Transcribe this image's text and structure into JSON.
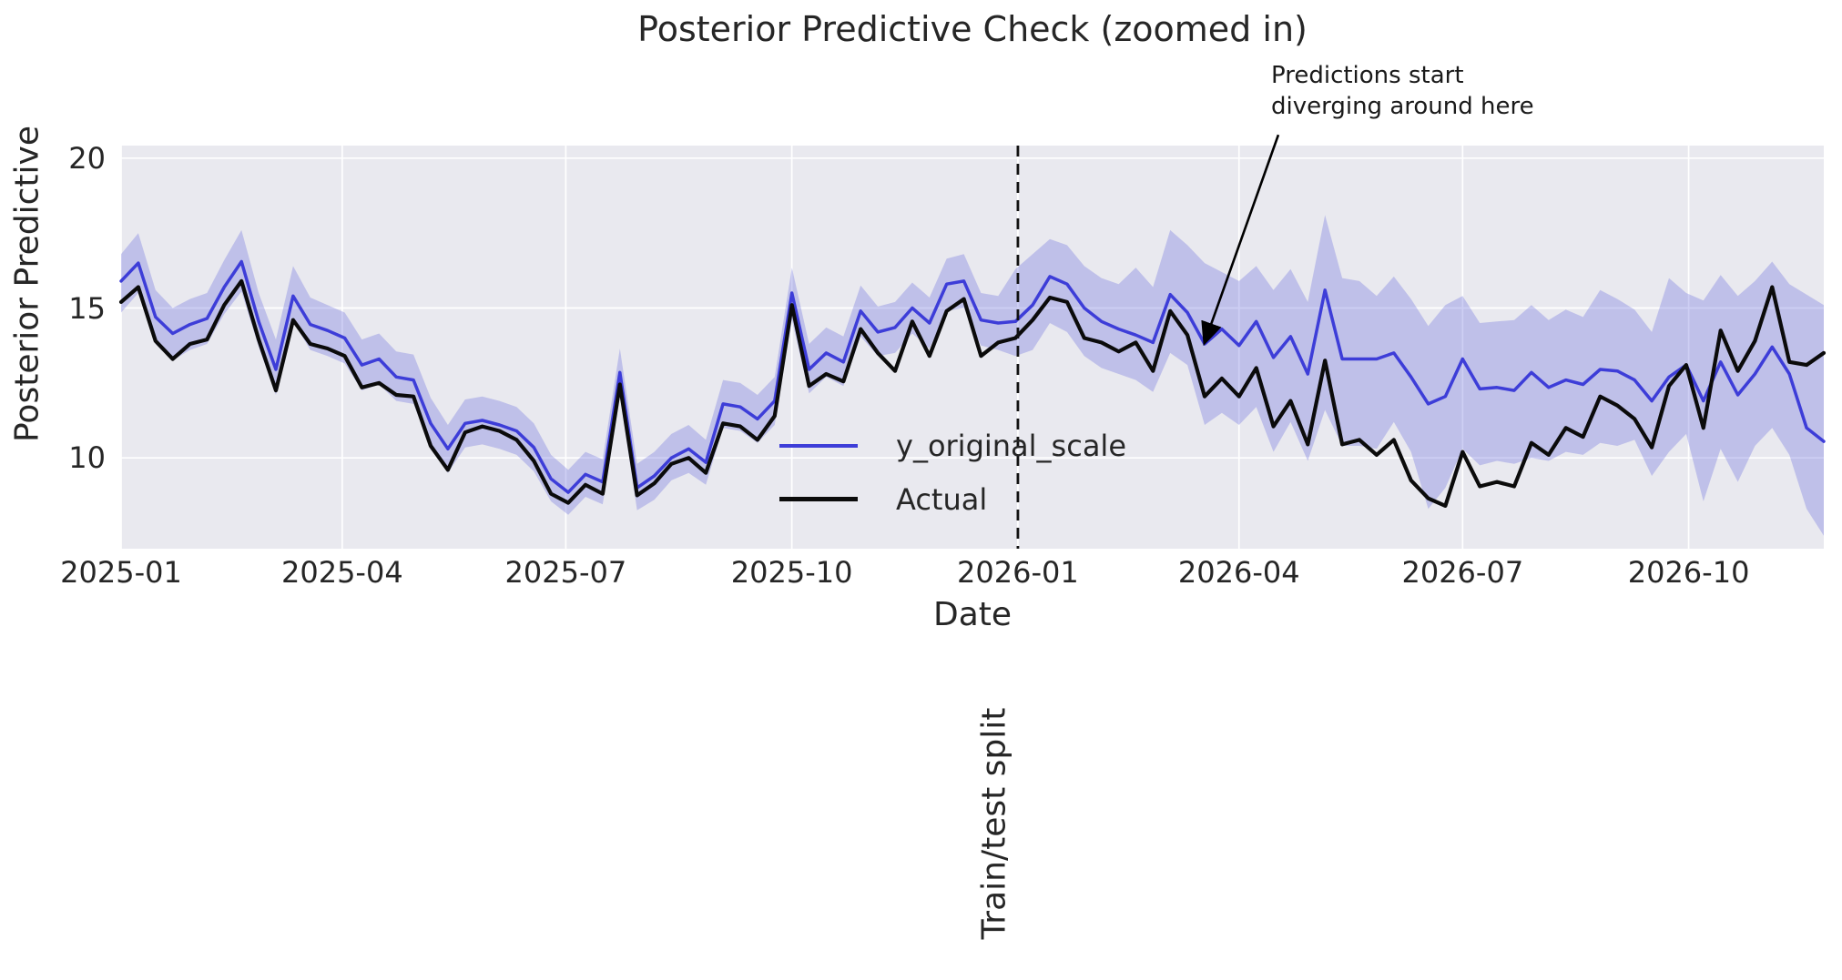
{
  "chart_data": {
    "type": "line",
    "title": "Posterior Predictive Check (zoomed in)",
    "xlabel": "Date",
    "ylabel": "Posterior Predictive",
    "grid": true,
    "figure_bg": "#ffffff",
    "plot_bg": "#e9e9ef",
    "grid_color": "#ffffff",
    "text_color": "#262626",
    "ylim": [
      6.97,
      20.42
    ],
    "y_ticks": [
      10,
      15,
      20
    ],
    "x_tick_dates": [
      "2025-01-01",
      "2025-04-01",
      "2025-07-01",
      "2025-10-01",
      "2026-01-01",
      "2026-04-01",
      "2026-07-01",
      "2026-10-01"
    ],
    "x_tick_labels": [
      "2025-01",
      "2025-04",
      "2025-07",
      "2025-10",
      "2026-01",
      "2026-04",
      "2026-07",
      "2026-10"
    ],
    "legend_position": "center-left-of-plot",
    "legend": [
      {
        "name": "y_original_scale",
        "color": "#3d3dd8",
        "line_width": 3.5
      },
      {
        "name": "Actual",
        "color": "#0b0b0b",
        "line_width": 4.2
      }
    ],
    "band_color": "rgba(104,106,220,0.32)",
    "split_line": {
      "date": "2026-01-01",
      "label": "Train/test split",
      "style": "dashed",
      "color": "#111111"
    },
    "annotation": {
      "line1": "Predictions start",
      "line2": "diverging around here",
      "arrow_from_date": "2026-04-17",
      "arrow_from_value": 20.78,
      "arrow_to_date": "2026-03-18",
      "arrow_to_value": 13.85,
      "arrow_color": "#000000"
    },
    "x_dates": [
      "2025-01-01",
      "2025-01-08",
      "2025-01-15",
      "2025-01-22",
      "2025-01-29",
      "2025-02-05",
      "2025-02-12",
      "2025-02-19",
      "2025-02-26",
      "2025-03-05",
      "2025-03-12",
      "2025-03-19",
      "2025-03-26",
      "2025-04-02",
      "2025-04-09",
      "2025-04-16",
      "2025-04-23",
      "2025-04-30",
      "2025-05-07",
      "2025-05-14",
      "2025-05-21",
      "2025-05-28",
      "2025-06-04",
      "2025-06-11",
      "2025-06-18",
      "2025-06-25",
      "2025-07-02",
      "2025-07-09",
      "2025-07-16",
      "2025-07-23",
      "2025-07-30",
      "2025-08-06",
      "2025-08-13",
      "2025-08-20",
      "2025-08-27",
      "2025-09-03",
      "2025-09-10",
      "2025-09-17",
      "2025-09-24",
      "2025-10-01",
      "2025-10-08",
      "2025-10-15",
      "2025-10-22",
      "2025-10-29",
      "2025-11-05",
      "2025-11-12",
      "2025-11-19",
      "2025-11-26",
      "2025-12-03",
      "2025-12-10",
      "2025-12-17",
      "2025-12-24",
      "2025-12-31",
      "2026-01-07",
      "2026-01-14",
      "2026-01-21",
      "2026-01-28",
      "2026-02-04",
      "2026-02-11",
      "2026-02-18",
      "2026-02-25",
      "2026-03-04",
      "2026-03-11",
      "2026-03-18",
      "2026-03-25",
      "2026-04-01",
      "2026-04-08",
      "2026-04-15",
      "2026-04-22",
      "2026-04-29",
      "2026-05-06",
      "2026-05-13",
      "2026-05-20",
      "2026-05-27",
      "2026-06-03",
      "2026-06-10",
      "2026-06-17",
      "2026-06-24",
      "2026-07-01",
      "2026-07-08",
      "2026-07-15",
      "2026-07-22",
      "2026-07-29",
      "2026-08-05",
      "2026-08-12",
      "2026-08-19",
      "2026-08-26",
      "2026-09-02",
      "2026-09-09",
      "2026-09-16",
      "2026-09-23",
      "2026-09-30",
      "2026-10-07",
      "2026-10-14",
      "2026-10-21",
      "2026-10-28",
      "2026-11-04",
      "2026-11-11",
      "2026-11-18",
      "2026-11-25"
    ],
    "series": [
      {
        "name": "y_original_scale",
        "values": [
          15.9,
          16.5,
          14.7,
          14.15,
          14.45,
          14.65,
          15.7,
          16.55,
          14.55,
          12.95,
          15.4,
          14.45,
          14.25,
          14.0,
          13.1,
          13.3,
          12.7,
          12.6,
          11.15,
          10.3,
          11.15,
          11.25,
          11.1,
          10.9,
          10.35,
          9.3,
          8.85,
          9.45,
          9.2,
          12.85,
          9.0,
          9.4,
          10.0,
          10.3,
          9.85,
          11.8,
          11.7,
          11.3,
          11.9,
          15.5,
          12.95,
          13.5,
          13.2,
          14.9,
          14.2,
          14.35,
          15.0,
          14.5,
          15.8,
          15.9,
          14.6,
          14.5,
          14.55,
          15.1,
          16.05,
          15.8,
          15.0,
          14.55,
          14.3,
          14.1,
          13.85,
          15.45,
          14.85,
          13.8,
          14.3,
          13.75,
          14.55,
          13.35,
          14.05,
          12.8,
          15.6,
          13.3,
          13.3,
          13.3,
          13.5,
          12.7,
          11.8,
          12.05,
          13.3,
          12.3,
          12.35,
          12.25,
          12.85,
          12.35,
          12.6,
          12.45,
          12.95,
          12.9,
          12.6,
          11.9,
          12.7,
          13.1,
          11.9,
          13.2,
          12.1,
          12.8,
          13.7,
          12.8,
          11.0,
          10.55
        ]
      },
      {
        "name": "Actual",
        "values": [
          15.2,
          15.7,
          13.9,
          13.3,
          13.8,
          13.95,
          15.1,
          15.9,
          13.95,
          12.25,
          14.6,
          13.8,
          13.65,
          13.4,
          12.35,
          12.5,
          12.1,
          12.05,
          10.4,
          9.6,
          10.85,
          11.05,
          10.9,
          10.6,
          9.9,
          8.8,
          8.5,
          9.1,
          8.8,
          12.45,
          8.75,
          9.15,
          9.8,
          10.0,
          9.5,
          11.15,
          11.05,
          10.6,
          11.4,
          15.1,
          12.4,
          12.8,
          12.55,
          14.3,
          13.5,
          12.9,
          14.55,
          13.4,
          14.9,
          15.3,
          13.4,
          13.85,
          14.0,
          14.6,
          15.35,
          15.2,
          14.0,
          13.85,
          13.55,
          13.85,
          12.9,
          14.9,
          14.1,
          12.05,
          12.65,
          12.05,
          13.0,
          11.05,
          11.9,
          10.45,
          13.25,
          10.45,
          10.6,
          10.1,
          10.6,
          9.25,
          8.65,
          8.4,
          10.2,
          9.05,
          9.2,
          9.05,
          10.5,
          10.1,
          11.0,
          10.7,
          12.05,
          11.75,
          11.3,
          10.35,
          12.4,
          13.1,
          11.0,
          14.25,
          12.9,
          13.9,
          15.7,
          13.2,
          13.1,
          13.5
        ]
      }
    ],
    "band": {
      "name": "credible interval around y_original_scale",
      "upper": [
        16.8,
        17.5,
        15.6,
        15.0,
        15.3,
        15.5,
        16.6,
        17.6,
        15.5,
        13.95,
        16.4,
        15.35,
        15.1,
        14.85,
        13.95,
        14.15,
        13.55,
        13.45,
        12.0,
        11.1,
        11.95,
        12.05,
        11.9,
        11.7,
        11.15,
        10.1,
        9.6,
        10.2,
        9.95,
        13.65,
        9.8,
        10.2,
        10.8,
        11.1,
        10.6,
        12.6,
        12.5,
        12.1,
        12.7,
        16.35,
        13.8,
        14.35,
        14.05,
        15.75,
        15.05,
        15.2,
        15.85,
        15.35,
        16.65,
        16.8,
        15.5,
        15.4,
        16.3,
        16.8,
        17.3,
        17.1,
        16.4,
        16.0,
        15.8,
        16.35,
        15.7,
        17.6,
        17.1,
        16.5,
        16.2,
        15.9,
        16.4,
        15.6,
        16.3,
        15.2,
        18.1,
        16.0,
        15.9,
        15.4,
        16.05,
        15.3,
        14.4,
        15.1,
        15.4,
        14.5,
        14.55,
        14.6,
        15.1,
        14.6,
        14.95,
        14.7,
        15.6,
        15.3,
        14.95,
        14.2,
        16.0,
        15.5,
        15.25,
        16.1,
        15.4,
        15.9,
        16.55,
        15.8,
        15.45,
        15.1
      ],
      "lower": [
        14.85,
        15.5,
        13.8,
        13.25,
        13.6,
        13.8,
        14.8,
        15.55,
        13.7,
        12.1,
        14.55,
        13.6,
        13.4,
        13.15,
        12.25,
        12.45,
        11.9,
        11.8,
        10.35,
        9.5,
        10.35,
        10.45,
        10.3,
        10.1,
        9.55,
        8.55,
        8.1,
        8.7,
        8.45,
        12.05,
        8.25,
        8.6,
        9.25,
        9.5,
        9.1,
        11.0,
        10.9,
        10.5,
        11.1,
        14.6,
        12.15,
        12.7,
        12.4,
        14.05,
        13.4,
        13.5,
        14.15,
        13.65,
        14.9,
        15.0,
        13.75,
        13.6,
        13.4,
        13.6,
        14.5,
        14.2,
        13.4,
        13.0,
        12.8,
        12.6,
        12.2,
        13.5,
        13.1,
        11.1,
        11.5,
        11.1,
        11.7,
        10.2,
        11.2,
        9.9,
        11.6,
        10.4,
        10.4,
        10.3,
        11.2,
        10.2,
        8.3,
        9.0,
        10.3,
        9.75,
        9.9,
        9.8,
        10.0,
        9.9,
        10.2,
        10.1,
        10.5,
        10.4,
        10.6,
        9.4,
        10.2,
        10.8,
        8.55,
        10.3,
        9.2,
        10.4,
        11.0,
        10.1,
        8.3,
        7.4
      ]
    }
  }
}
